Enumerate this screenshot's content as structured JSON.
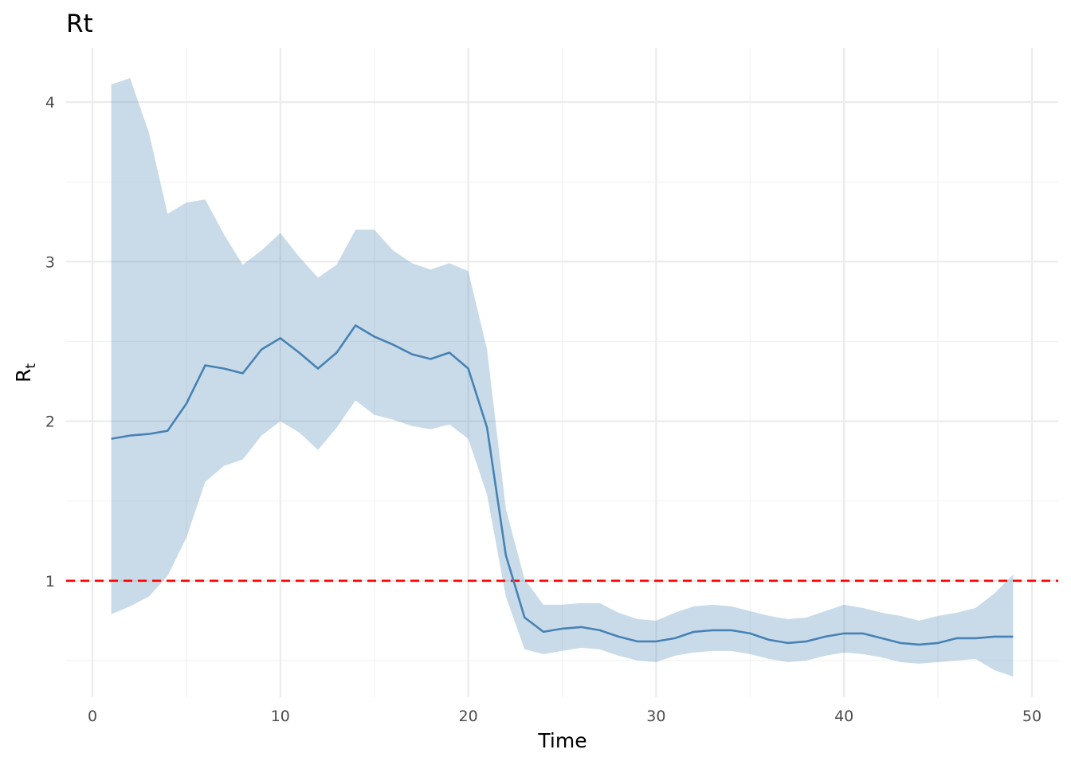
{
  "chart_data": {
    "type": "line",
    "title": "Rt",
    "xlabel": "Time",
    "ylabel": "R",
    "ylabel_subscript": "t",
    "xlim": [
      -1.4,
      51.4
    ],
    "ylim": [
      0.27,
      4.34
    ],
    "x_ticks": [
      0,
      10,
      20,
      30,
      40,
      50
    ],
    "x_tick_labels": [
      "0",
      "10",
      "20",
      "30",
      "40",
      "50"
    ],
    "x_minor_ticks": [
      5,
      15,
      25,
      35,
      45
    ],
    "y_ticks": [
      1,
      2,
      3,
      4
    ],
    "y_tick_labels": [
      "1",
      "2",
      "3",
      "4"
    ],
    "y_minor_ticks": [
      0.5,
      1.5,
      2.5,
      3.5
    ],
    "grid": true,
    "reference_line": {
      "y": 1,
      "style": "dashed",
      "color": "#ff0000"
    },
    "line_color": "#4682b4",
    "ribbon_color": "#4682b4",
    "series": [
      {
        "x": [
          1,
          2,
          3,
          4,
          5,
          6,
          7,
          8,
          9,
          10,
          11,
          12,
          13,
          14,
          15,
          16,
          17,
          18,
          19,
          20,
          21,
          22,
          23,
          24,
          25,
          26,
          27,
          28,
          29,
          30,
          31,
          32,
          33,
          34,
          35,
          36,
          37,
          38,
          39,
          40,
          41,
          42,
          43,
          44,
          45,
          46,
          47,
          48,
          49
        ],
        "mean": [
          1.89,
          1.91,
          1.92,
          1.94,
          2.11,
          2.35,
          2.33,
          2.3,
          2.45,
          2.52,
          2.43,
          2.33,
          2.43,
          2.6,
          2.53,
          2.48,
          2.42,
          2.39,
          2.43,
          2.33,
          1.96,
          1.16,
          0.77,
          0.68,
          0.7,
          0.71,
          0.69,
          0.65,
          0.62,
          0.62,
          0.64,
          0.68,
          0.69,
          0.69,
          0.67,
          0.63,
          0.61,
          0.62,
          0.65,
          0.67,
          0.67,
          0.64,
          0.61,
          0.6,
          0.61,
          0.64,
          0.64,
          0.65,
          0.65
        ],
        "lower": [
          0.79,
          0.84,
          0.9,
          1.03,
          1.27,
          1.62,
          1.72,
          1.76,
          1.91,
          2.0,
          1.93,
          1.82,
          1.96,
          2.13,
          2.04,
          2.01,
          1.97,
          1.95,
          1.98,
          1.89,
          1.54,
          0.9,
          0.57,
          0.54,
          0.56,
          0.58,
          0.57,
          0.53,
          0.5,
          0.49,
          0.53,
          0.55,
          0.56,
          0.56,
          0.54,
          0.51,
          0.49,
          0.5,
          0.53,
          0.55,
          0.54,
          0.52,
          0.49,
          0.48,
          0.49,
          0.5,
          0.51,
          0.44,
          0.4
        ],
        "upper": [
          4.11,
          4.15,
          3.81,
          3.3,
          3.37,
          3.39,
          3.17,
          2.98,
          3.07,
          3.18,
          3.03,
          2.9,
          2.98,
          3.2,
          3.2,
          3.07,
          2.99,
          2.95,
          2.99,
          2.94,
          2.45,
          1.45,
          1.01,
          0.85,
          0.85,
          0.86,
          0.86,
          0.8,
          0.76,
          0.75,
          0.8,
          0.84,
          0.85,
          0.84,
          0.81,
          0.78,
          0.76,
          0.77,
          0.81,
          0.85,
          0.83,
          0.8,
          0.78,
          0.75,
          0.78,
          0.8,
          0.83,
          0.92,
          1.04
        ]
      }
    ]
  }
}
